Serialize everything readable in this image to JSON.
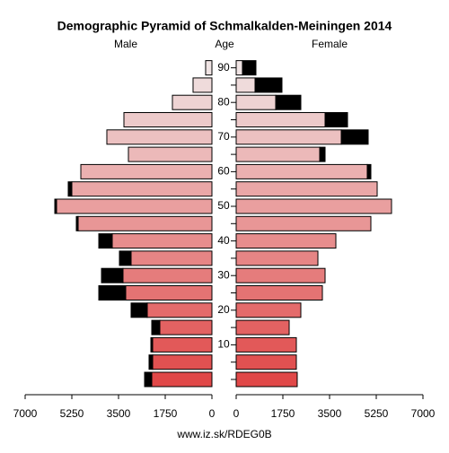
{
  "chart_data": {
    "type": "pyramid",
    "title": "Demographic Pyramid of Schmalkalden-Meiningen 2014",
    "age_label": "Age",
    "footer": "www.iz.sk/RDEG0B",
    "categories": [
      null,
      null,
      "10",
      null,
      "20",
      null,
      "30",
      null,
      "40",
      null,
      "50",
      null,
      "60",
      null,
      "70",
      null,
      "80",
      null,
      "90"
    ],
    "bar_colors": [
      "#e04848",
      "#e15151",
      "#e25959",
      "#e36262",
      "#e46b6b",
      "#e47373",
      "#e57c7c",
      "#e68585",
      "#e78d8d",
      "#e89696",
      "#e99f9f",
      "#eaa7a7",
      "#ebb0b0",
      "#ecb9b9",
      "#ecc1c1",
      "#edcaca",
      "#eed3d3",
      "#efdbdb",
      "#f0e4e4"
    ],
    "extra_color": "#000000",
    "series": [
      {
        "name": "Male",
        "side": "left",
        "values": [
          2255,
          2221,
          2221,
          1952,
          2423,
          3231,
          3332,
          3029,
          3736,
          5014,
          5822,
          5250,
          4913,
          3130,
          3938,
          3298,
          1481,
          707,
          236
        ],
        "extra_values": [
          269,
          135,
          67,
          303,
          606,
          1009,
          807,
          437,
          504,
          68,
          67,
          135,
          0,
          0,
          0,
          0,
          0,
          0,
          0
        ]
      },
      {
        "name": "Female",
        "side": "right",
        "values": [
          2288,
          2255,
          2255,
          1986,
          2423,
          3231,
          3332,
          3063,
          3736,
          5048,
          5822,
          5284,
          4913,
          3130,
          3938,
          3332,
          1481,
          707,
          236
        ],
        "extra_values": [
          0,
          0,
          0,
          0,
          0,
          0,
          0,
          0,
          0,
          0,
          0,
          0,
          135,
          202,
          1009,
          841,
          942,
          1009,
          504
        ]
      }
    ],
    "xlim": [
      0,
      7000
    ],
    "xticks": [
      0,
      1750,
      3500,
      5250,
      7000
    ]
  }
}
